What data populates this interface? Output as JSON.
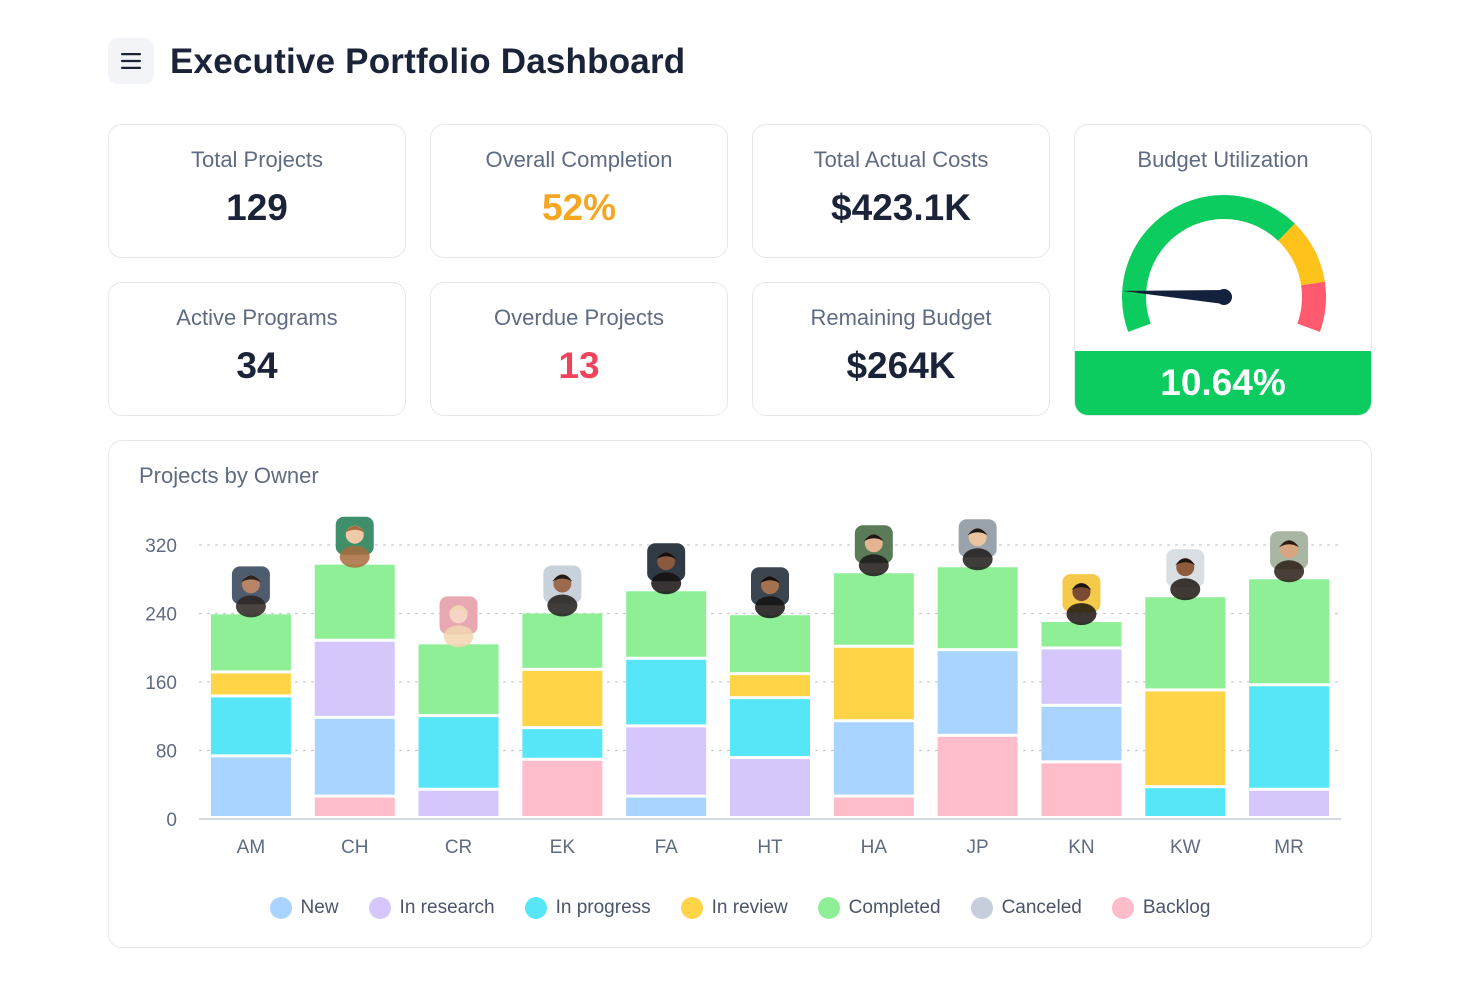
{
  "header": {
    "title": "Executive Portfolio Dashboard",
    "menu_icon": "hamburger-menu-icon"
  },
  "kpis": {
    "total_projects": {
      "label": "Total Projects",
      "value": "129"
    },
    "overall_completion": {
      "label": "Overall Completion",
      "value": "52%",
      "color": "#f5a623"
    },
    "total_actual_costs": {
      "label": "Total Actual Costs",
      "value": "$423.1K"
    },
    "active_programs": {
      "label": "Active Programs",
      "value": "34"
    },
    "overdue_projects": {
      "label": "Overdue Projects",
      "value": "13",
      "color": "#f0445d"
    },
    "remaining_budget": {
      "label": "Remaining Budget",
      "value": "$264K"
    }
  },
  "budget_utilization": {
    "label": "Budget Utilization",
    "value": "10.64%",
    "fraction": 0.1064,
    "zones": [
      {
        "from": 0,
        "to": 0.7,
        "color": "#0ccc60"
      },
      {
        "from": 0.7,
        "to": 0.87,
        "color": "#ffc21a"
      },
      {
        "from": 0.87,
        "to": 1,
        "color": "#ff5a6e"
      }
    ],
    "footer_color": "#0ccc60"
  },
  "chart_data": {
    "type": "bar",
    "stacked": true,
    "title": "Projects by Owner",
    "categories": [
      "AM",
      "CH",
      "CR",
      "EK",
      "FA",
      "HT",
      "HA",
      "JP",
      "KN",
      "KW",
      "MR"
    ],
    "ylim": [
      0,
      320
    ],
    "yticks": [
      0,
      80,
      160,
      240,
      320
    ],
    "grid": true,
    "legend_position": "bottom",
    "series": [
      {
        "name": "New",
        "color": "#a8d4ff",
        "values": [
          72,
          0,
          0,
          0,
          0,
          0,
          0,
          0,
          0,
          0,
          0
        ]
      },
      {
        "name": "In research",
        "color": "#d5c6fc",
        "values": [
          0,
          0,
          0,
          0,
          0,
          0,
          0,
          0,
          0,
          0,
          0
        ]
      },
      {
        "name": "In progress",
        "color": "#56e6f7",
        "values": [
          70,
          0,
          0,
          0,
          0,
          0,
          0,
          0,
          0,
          0,
          0
        ]
      },
      {
        "name": "In review",
        "color": "#ffd447",
        "values": [
          28,
          0,
          0,
          0,
          0,
          0,
          0,
          0,
          0,
          0,
          0
        ]
      },
      {
        "name": "Completed",
        "color": "#8eef97",
        "values": [
          69,
          0,
          0,
          0,
          0,
          0,
          0,
          0,
          0,
          0,
          0
        ]
      },
      {
        "name": "Canceled",
        "color": "#c6cedb",
        "values": [
          0,
          0,
          0,
          0,
          0,
          0,
          0,
          0,
          0,
          0,
          0
        ]
      },
      {
        "name": "Backlog",
        "color": "#ffbccb",
        "values": [
          0,
          0,
          0,
          0,
          0,
          0,
          0,
          0,
          0,
          0,
          0
        ]
      }
    ],
    "stacks": [
      [
        [
          "New",
          72
        ],
        [
          "In progress",
          70
        ],
        [
          "In review",
          28
        ],
        [
          "Completed",
          69
        ]
      ],
      [
        [
          "Backlog",
          25
        ],
        [
          "New",
          92
        ],
        [
          "In research",
          90
        ],
        [
          "Completed",
          90
        ]
      ],
      [
        [
          "In research",
          33
        ],
        [
          "In progress",
          86
        ],
        [
          "Completed",
          85
        ]
      ],
      [
        [
          "Backlog",
          68
        ],
        [
          "In progress",
          37
        ],
        [
          "In review",
          68
        ],
        [
          "Completed",
          67
        ]
      ],
      [
        [
          "New",
          25
        ],
        [
          "In research",
          82
        ],
        [
          "In progress",
          79
        ],
        [
          "Completed",
          80
        ]
      ],
      [
        [
          "In research",
          70
        ],
        [
          "In progress",
          70
        ],
        [
          "In review",
          28
        ],
        [
          "Completed",
          70
        ]
      ],
      [
        [
          "Backlog",
          25
        ],
        [
          "New",
          88
        ],
        [
          "In review",
          87
        ],
        [
          "Completed",
          87
        ]
      ],
      [
        [
          "Backlog",
          96
        ],
        [
          "New",
          100
        ],
        [
          "Completed",
          98
        ]
      ],
      [
        [
          "Backlog",
          65
        ],
        [
          "New",
          66
        ],
        [
          "In research",
          67
        ],
        [
          "Completed",
          32
        ]
      ],
      [
        [
          "In progress",
          36
        ],
        [
          "In review",
          113
        ],
        [
          "Completed",
          110
        ]
      ],
      [
        [
          "In research",
          33
        ],
        [
          "In progress",
          122
        ],
        [
          "Completed",
          125
        ]
      ]
    ],
    "avatars": [
      {
        "owner": "AM",
        "bg": "#4d5c6e",
        "skin": "#b98466",
        "hair": "#2a2320"
      },
      {
        "owner": "CH",
        "bg": "#3f8f6a",
        "skin": "#f0c9a8",
        "hair": "#a86b3c"
      },
      {
        "owner": "CR",
        "bg": "#e7a8b2",
        "skin": "#f6d4c6",
        "hair": "#f2d6b0"
      },
      {
        "owner": "EK",
        "bg": "#c9d2db",
        "skin": "#9c6a4e",
        "hair": "#1e1a18"
      },
      {
        "owner": "FA",
        "bg": "#2f3a44",
        "skin": "#8a5a40",
        "hair": "#15110f"
      },
      {
        "owner": "HT",
        "bg": "#3b4550",
        "skin": "#a4714f",
        "hair": "#141110"
      },
      {
        "owner": "HA",
        "bg": "#5a7a58",
        "skin": "#e2b48f",
        "hair": "#1c1815"
      },
      {
        "owner": "JP",
        "bg": "#9aa3ab",
        "skin": "#ecc39f",
        "hair": "#1d1a18"
      },
      {
        "owner": "KN",
        "bg": "#f5c94a",
        "skin": "#7a4a32",
        "hair": "#1a1412"
      },
      {
        "owner": "KW",
        "bg": "#d9dee3",
        "skin": "#8f5b3d",
        "hair": "#1e1713"
      },
      {
        "owner": "MR",
        "bg": "#a9b6a4",
        "skin": "#d7a57f",
        "hair": "#2a1d15"
      }
    ]
  }
}
